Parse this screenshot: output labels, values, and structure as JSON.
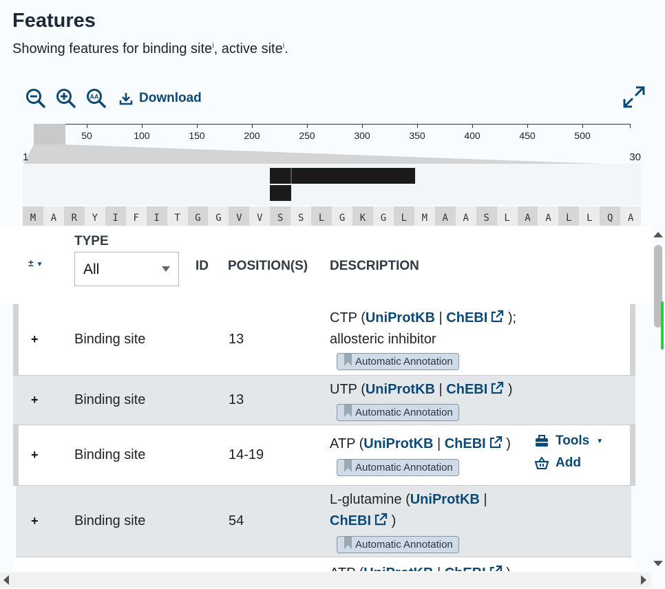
{
  "header": {
    "title": "Features",
    "subtitle_prefix": "Showing features for ",
    "filter1": "binding site",
    "sep": ", ",
    "filter2": "active site",
    "suffix": ".",
    "info_mark": "i"
  },
  "toolbar": {
    "zoom_out": "zoom-out-icon",
    "zoom_in": "zoom-in-icon",
    "zoom_reset": "zoom-reset-icon",
    "download_label": "Download",
    "expand": "expand-icon"
  },
  "navigation": {
    "tick_labels": [
      "50",
      "100",
      "150",
      "200",
      "250",
      "300",
      "350",
      "400",
      "450",
      "500"
    ],
    "range_start": "1",
    "range_end": "30"
  },
  "sequence": [
    "M",
    "A",
    "R",
    "Y",
    "I",
    "F",
    "I",
    "T",
    "G",
    "G",
    "V",
    "V",
    "S",
    "S",
    "L",
    "G",
    "K",
    "G",
    "L",
    "M",
    "A",
    "A",
    "S",
    "L",
    "A",
    "A",
    "L",
    "L",
    "Q",
    "A"
  ],
  "table": {
    "expand_all": "±",
    "col_type": "TYPE",
    "type_filter_value": "All",
    "col_id": "ID",
    "col_positions": "POSITION(S)",
    "col_description": "DESCRIPTION"
  },
  "rows": [
    {
      "plus": "+",
      "type": "Binding site",
      "position": "13",
      "ligand": "CTP",
      "link1": "UniProtKB",
      "pipe": "|",
      "link2": "ChEBI",
      "tail": ");",
      "note": "allosteric inhibitor",
      "badge": "Automatic Annotation"
    },
    {
      "plus": "+",
      "type": "Binding site",
      "position": "13",
      "ligand": "UTP",
      "link1": "UniProtKB",
      "pipe": "|",
      "link2": "ChEBI",
      "tail": ")",
      "badge": "Automatic Annotation"
    },
    {
      "plus": "+",
      "type": "Binding site",
      "position": "14-19",
      "ligand": "ATP",
      "link1": "UniProtKB",
      "pipe": "|",
      "link2": "ChEBI",
      "tail": ")",
      "badge": "Automatic Annotation",
      "tools_label": "Tools",
      "add_label": "Add"
    },
    {
      "plus": "+",
      "type": "Binding site",
      "position": "54",
      "ligand": "L-glutamine",
      "link1": "UniProtKB",
      "pipe": "|",
      "link2": "ChEBI",
      "tail": ")",
      "badge": "Automatic Annotation"
    },
    {
      "ligand": "ATP",
      "link1": "UniProtKB",
      "pipe": "|",
      "link2": "ChEBI",
      "tail": ")"
    }
  ]
}
